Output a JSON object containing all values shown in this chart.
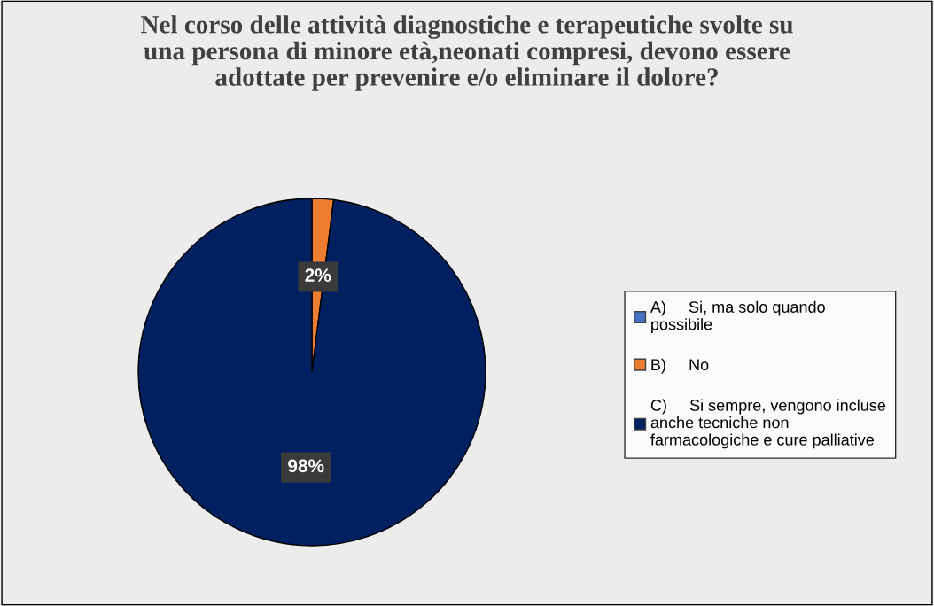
{
  "chart_data": {
    "type": "pie",
    "title": "Nel corso delle attività diagnostiche e terapeutiche svolte su\nuna persona di minore età,neonati compresi, devono essere\nadottate per prevenire e/o eliminare il dolore?",
    "categories": [
      "A)     Si, ma solo quando\npossibile",
      "B)     No",
      "C)     Si sempre, vengono incluse\nanche tecniche non\nfarmacologiche e cure palliative"
    ],
    "values": [
      0,
      2,
      98
    ],
    "colors": [
      "#4472c4",
      "#ed7d31",
      "#002060"
    ],
    "value_labels": [
      null,
      "2%",
      "98%"
    ],
    "legend": "right"
  }
}
